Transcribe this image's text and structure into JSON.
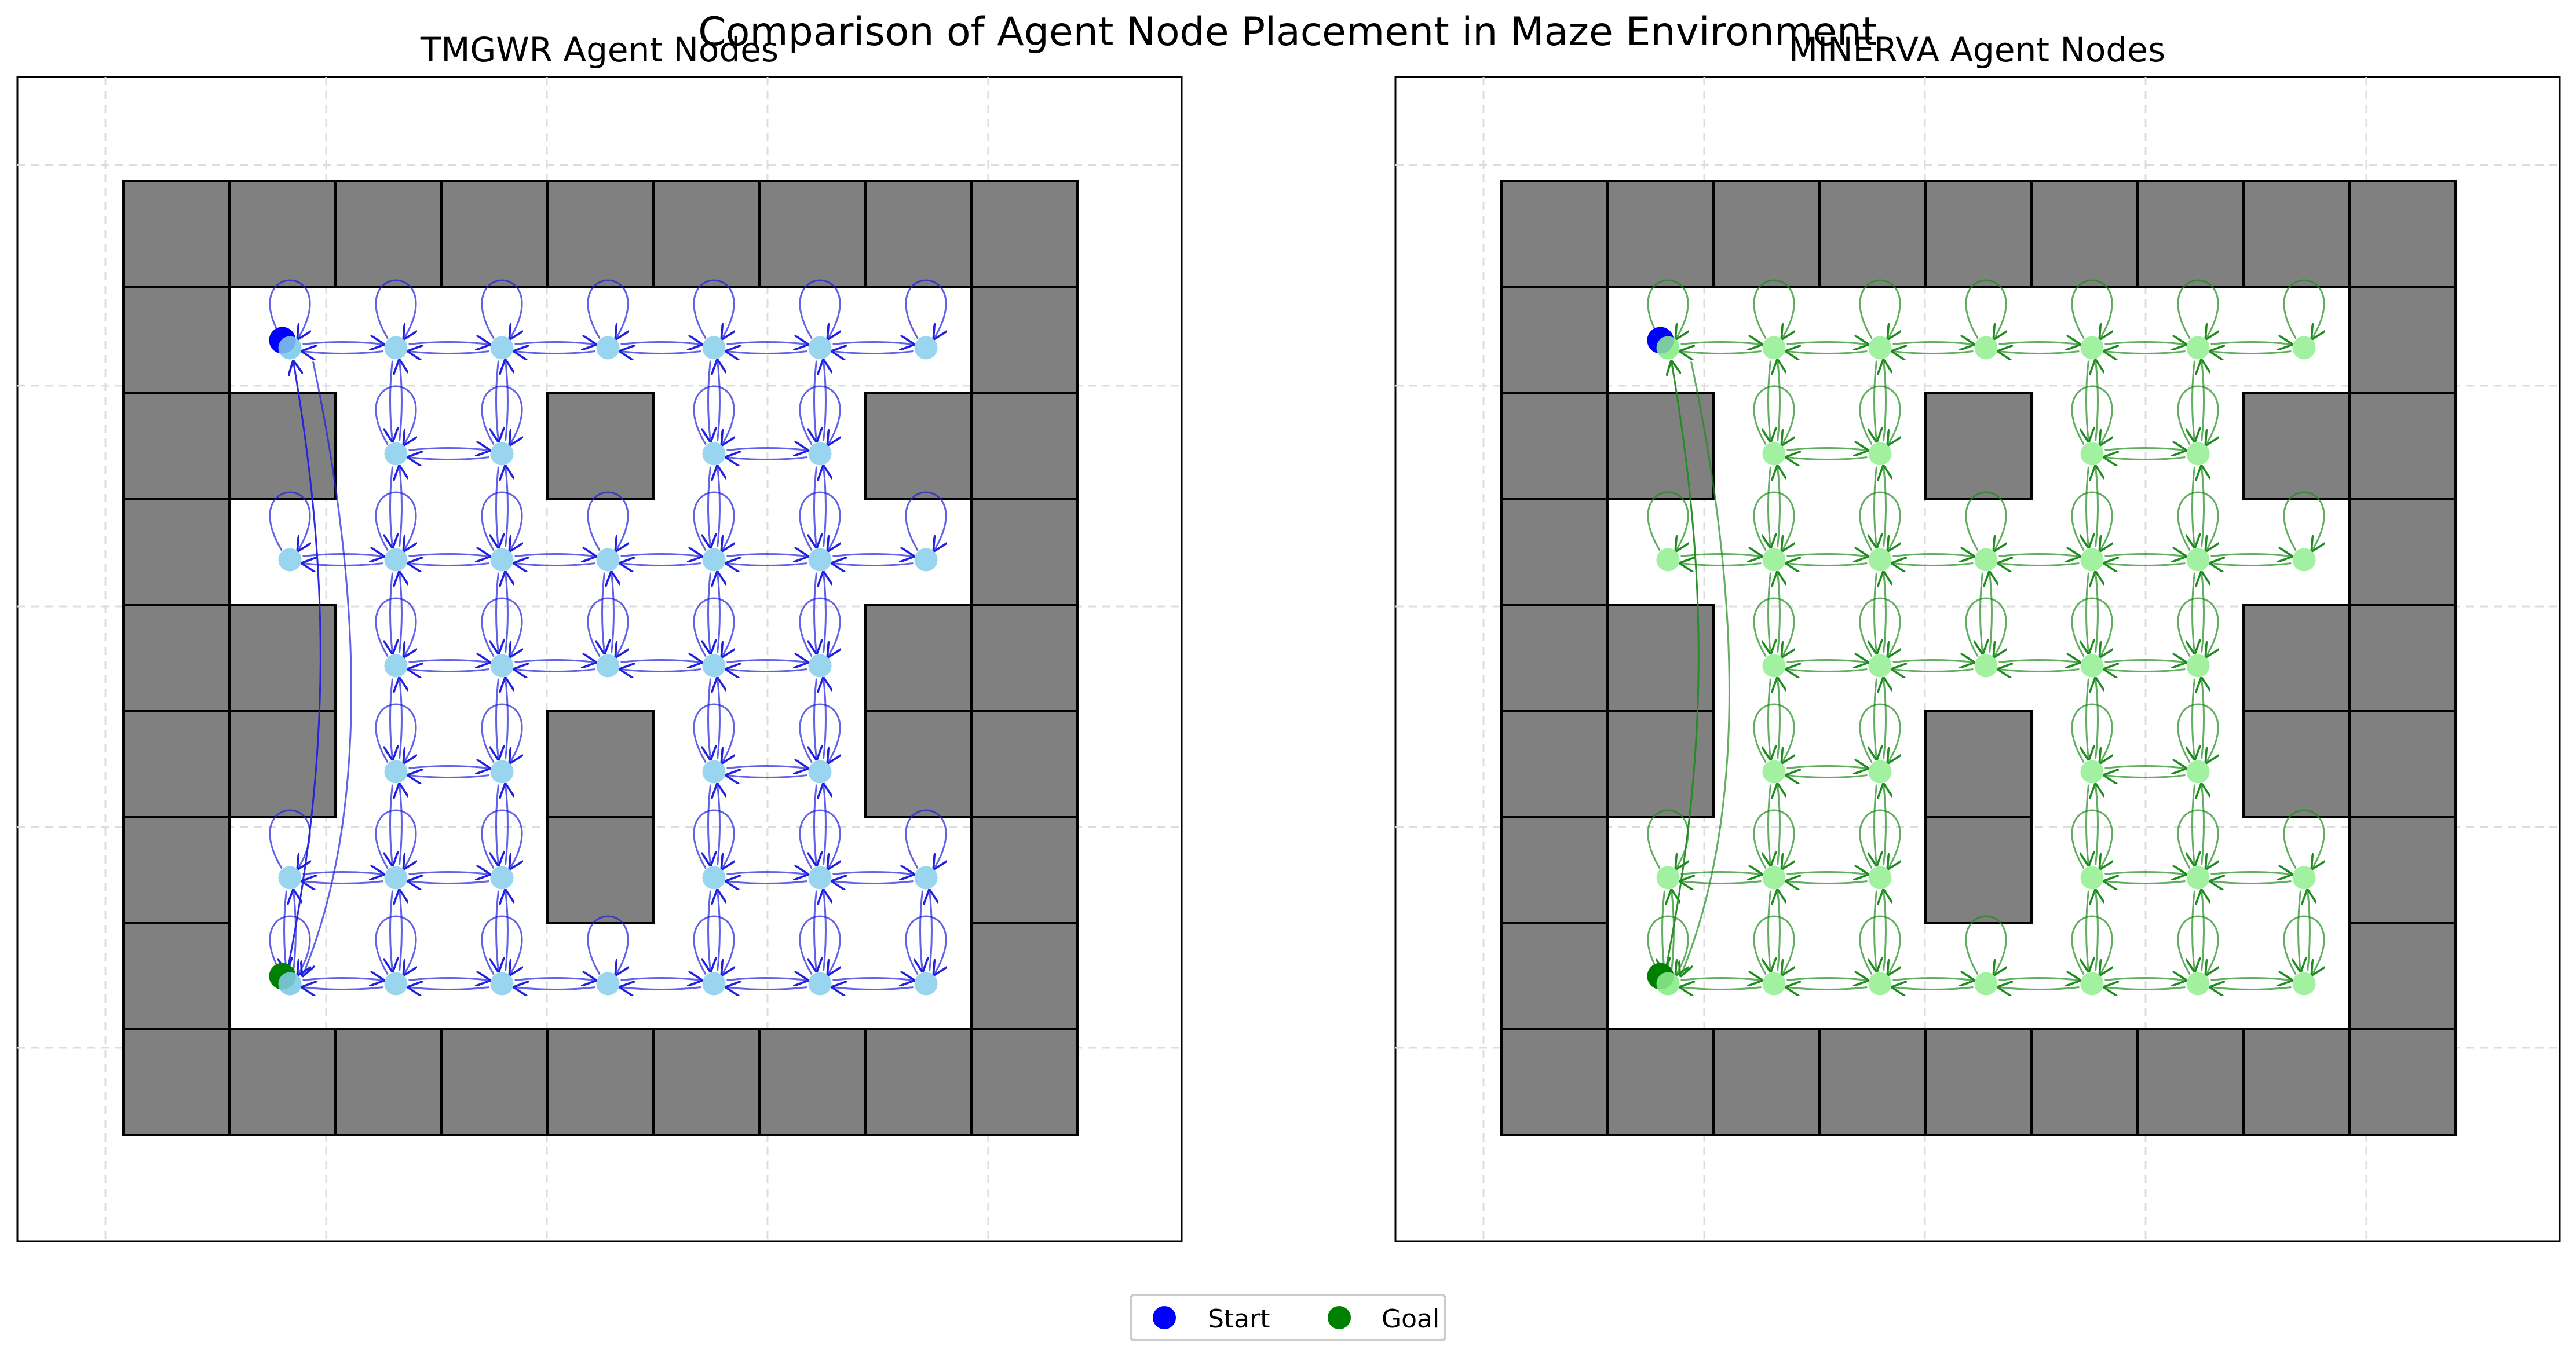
{
  "figure": {
    "title": "Comparison of Agent Node Placement in Maze Environment"
  },
  "panels": [
    {
      "id": "tmgwr",
      "title": "TMGWR Agent Nodes",
      "node_color": "#87CEEB",
      "edge_color": "#2020E0"
    },
    {
      "id": "minerva",
      "title": "MINERVA Agent Nodes",
      "node_color": "#90EE90",
      "edge_color": "#1E8C1E"
    }
  ],
  "legend": {
    "items": [
      {
        "label": "Start",
        "color": "#0000FF"
      },
      {
        "label": "Goal",
        "color": "#008000"
      }
    ]
  },
  "maze": {
    "rows": 9,
    "cols": 9,
    "wall_color": "#808080",
    "walls_grid": [
      "#########",
      "#.......#",
      "##..#..##",
      "#.......#",
      "##.....##",
      "##..#..##",
      "#...#...#",
      "#.......#",
      "#########"
    ],
    "start_cell": [
      1,
      1
    ],
    "goal_cell": [
      7,
      1
    ],
    "shortcut_edge": {
      "from": [
        7,
        1
      ],
      "to": [
        1,
        1
      ]
    }
  }
}
